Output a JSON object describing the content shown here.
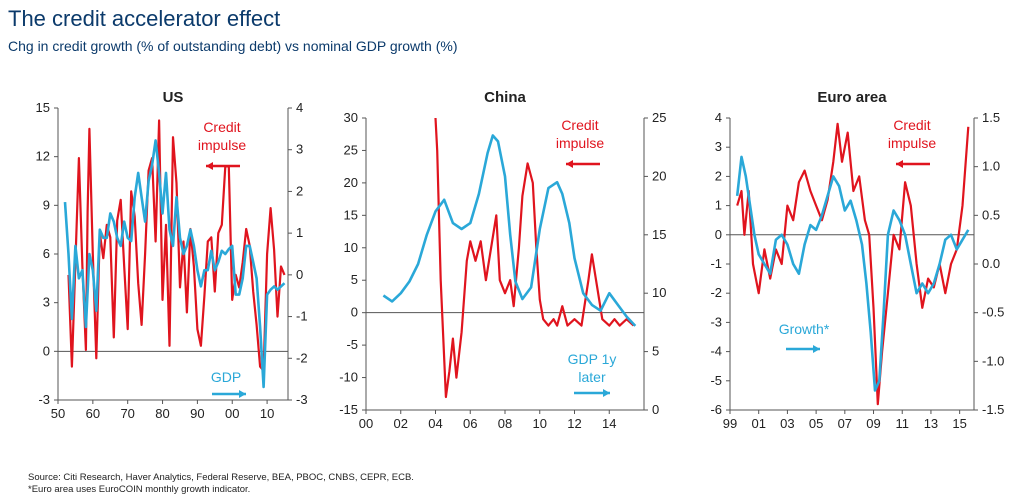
{
  "title": "The credit accelerator effect",
  "subtitle": "Chg in credit growth (% of outstanding debt) vs nominal GDP growth (%)",
  "source": "Source: Citi Research, Haver Analytics, Federal Reserve, BEA, PBOC, CNBS, CEPR, ECB.",
  "footnote": "*Euro area uses EuroCOIN monthly growth indicator.",
  "colors": {
    "credit": "#e0141e",
    "gdp": "#2aa8d8",
    "axis": "#555555",
    "text": "#222222"
  },
  "chart_data": [
    {
      "type": "line",
      "title": "US",
      "x_ticks": [
        "50",
        "60",
        "70",
        "80",
        "90",
        "00",
        "10"
      ],
      "x_tick_values": [
        1950,
        1960,
        1970,
        1980,
        1990,
        2000,
        2010
      ],
      "xlim": [
        1950,
        2016
      ],
      "left_axis": {
        "ticks": [
          -3,
          0,
          3,
          6,
          9,
          12,
          15
        ],
        "ylim": [
          -3,
          15
        ]
      },
      "right_axis": {
        "ticks": [
          -3,
          -2,
          -1,
          0,
          1,
          2,
          3,
          4
        ],
        "ylim": [
          -3,
          4
        ]
      },
      "series": [
        {
          "name": "Credit impulse",
          "axis": "right",
          "color": "#e0141e",
          "x": [
            1953,
            1954,
            1955,
            1956,
            1957,
            1958,
            1958.5,
            1959,
            1960,
            1961,
            1962,
            1963,
            1964,
            1965,
            1966,
            1967,
            1968,
            1969,
            1970,
            1971,
            1972,
            1973,
            1974,
            1975,
            1976,
            1977,
            1978,
            1979,
            1980,
            1981,
            1982,
            1983,
            1984,
            1985,
            1986,
            1987,
            1988,
            1989,
            1990,
            1991,
            1992,
            1993,
            1994,
            1995,
            1996,
            1997,
            1998,
            1999,
            2000,
            2001,
            2002,
            2003,
            2004,
            2005,
            2006,
            2007,
            2008,
            2009,
            2010,
            2011,
            2012,
            2013,
            2014,
            2015
          ],
          "y": [
            0,
            -2.2,
            0.3,
            2.8,
            0.2,
            -1.8,
            1.5,
            3.5,
            0.5,
            -2,
            1,
            0.4,
            1.2,
            0.9,
            -1.5,
            1.3,
            1.8,
            0.2,
            -1.3,
            2,
            1.4,
            -0.2,
            -1.2,
            0.5,
            2.5,
            2.8,
            0.8,
            3.7,
            -0.6,
            1.2,
            -1.7,
            3.3,
            2.2,
            -0.3,
            0.8,
            -0.9,
            1.1,
            0.2,
            -1.3,
            -1.7,
            -0.5,
            0.8,
            0.9,
            -0.4,
            1,
            1.2,
            2.6,
            2.6,
            -0.6,
            0,
            -0.3,
            0.3,
            1.1,
            0.7,
            -0.4,
            -1.2,
            -2.2,
            -2.3,
            0.5,
            1.6,
            0.6,
            -1,
            0.2,
            0
          ]
        },
        {
          "name": "GDP",
          "axis": "left",
          "color": "#2aa8d8",
          "x": [
            1952,
            1953,
            1954,
            1955,
            1956,
            1957,
            1958,
            1959,
            1960,
            1961,
            1962,
            1963,
            1964,
            1965,
            1966,
            1967,
            1968,
            1969,
            1970,
            1971,
            1972,
            1973,
            1974,
            1975,
            1976,
            1977,
            1978,
            1979,
            1980,
            1981,
            1982,
            1983,
            1984,
            1985,
            1986,
            1987,
            1988,
            1989,
            1990,
            1991,
            1992,
            1993,
            1994,
            1995,
            1996,
            1997,
            1998,
            1999,
            2000,
            2001,
            2002,
            2003,
            2004,
            2005,
            2006,
            2007,
            2008,
            2009,
            2010,
            2011,
            2012,
            2013,
            2014,
            2015
          ],
          "y": [
            9.2,
            6,
            2,
            6.5,
            4.5,
            5,
            1.5,
            6,
            5,
            2.5,
            7.5,
            7,
            7,
            8.5,
            8,
            7,
            6.5,
            8,
            7,
            6.8,
            9.5,
            11,
            9.5,
            8,
            10.5,
            11.5,
            13,
            11,
            8.5,
            11,
            7.5,
            6.5,
            9.5,
            7,
            6,
            6.5,
            7.5,
            6.5,
            5,
            4,
            5,
            5,
            6.2,
            5,
            5.5,
            6.2,
            6,
            6.3,
            6.5,
            3.5,
            3.5,
            4.5,
            6.5,
            6.5,
            5.5,
            4.5,
            1.5,
            -2.2,
            3.5,
            3.8,
            4,
            3.8,
            4,
            4.2
          ]
        }
      ],
      "annotations": {
        "credit_label": [
          "Credit",
          "impulse"
        ],
        "gdp_label": "GDP"
      }
    },
    {
      "type": "line",
      "title": "China",
      "x_ticks": [
        "00",
        "02",
        "04",
        "06",
        "08",
        "10",
        "12",
        "14"
      ],
      "x_tick_values": [
        2000,
        2002,
        2004,
        2006,
        2008,
        2010,
        2012,
        2014
      ],
      "xlim": [
        2000,
        2016
      ],
      "left_axis": {
        "ticks": [
          -15,
          -10,
          -5,
          0,
          5,
          10,
          15,
          20,
          25,
          30
        ],
        "ylim": [
          -15,
          30
        ]
      },
      "right_axis": {
        "ticks": [
          0,
          5,
          10,
          15,
          20,
          25
        ],
        "ylim": [
          0,
          25
        ]
      },
      "series": [
        {
          "name": "Credit impulse",
          "axis": "left",
          "color": "#e0141e",
          "x": [
            2004,
            2004.1,
            2004.3,
            2004.6,
            2004.8,
            2005,
            2005.2,
            2005.5,
            2005.8,
            2006,
            2006.3,
            2006.6,
            2006.9,
            2007.2,
            2007.5,
            2007.7,
            2008,
            2008.3,
            2008.5,
            2008.8,
            2009,
            2009.3,
            2009.6,
            2009.8,
            2010,
            2010.2,
            2010.5,
            2010.8,
            2011,
            2011.3,
            2011.6,
            2012,
            2012.4,
            2012.8,
            2013,
            2013.3,
            2013.6,
            2014,
            2014.3,
            2014.6,
            2015,
            2015.4
          ],
          "y": [
            30,
            25,
            5,
            -13,
            -9,
            -4,
            -10,
            -3,
            8,
            11,
            8,
            11,
            5,
            10,
            15,
            5,
            3,
            5,
            1,
            10,
            18,
            23,
            20,
            10,
            2,
            -1,
            -2,
            -1,
            -2,
            1,
            -2,
            -1,
            -2,
            5,
            9,
            4,
            -1,
            -2,
            -1,
            -2,
            -1,
            -2
          ]
        },
        {
          "name": "GDP 1y later",
          "axis": "right",
          "color": "#2aa8d8",
          "x": [
            2001,
            2001.5,
            2002,
            2002.5,
            2003,
            2003.5,
            2004,
            2004.5,
            2005,
            2005.5,
            2006,
            2006.5,
            2007,
            2007.3,
            2007.6,
            2008,
            2008.3,
            2008.6,
            2009,
            2009.5,
            2010,
            2010.5,
            2011,
            2011.3,
            2011.7,
            2012,
            2012.5,
            2013,
            2013.5,
            2014,
            2014.5,
            2015,
            2015.5
          ],
          "y": [
            9.8,
            9.3,
            10,
            11,
            12.5,
            15,
            17,
            18,
            16,
            15.5,
            16,
            18.5,
            22,
            23.5,
            23,
            20,
            15,
            11,
            9.5,
            10.5,
            15.5,
            19,
            19.5,
            18.5,
            16,
            13,
            10,
            9,
            8.5,
            10,
            9,
            8,
            7.2
          ]
        }
      ],
      "annotations": {
        "credit_label": [
          "Credit",
          "impulse"
        ],
        "gdp_label": [
          "GDP 1y",
          "later"
        ]
      }
    },
    {
      "type": "line",
      "title": "Euro area",
      "x_ticks": [
        "99",
        "01",
        "03",
        "05",
        "07",
        "09",
        "11",
        "13",
        "15"
      ],
      "x_tick_values": [
        1999,
        2001,
        2003,
        2005,
        2007,
        2009,
        2011,
        2013,
        2015
      ],
      "xlim": [
        1999,
        2016
      ],
      "left_axis": {
        "ticks": [
          -6,
          -5,
          -4,
          -3,
          -2,
          -1,
          0,
          1,
          2,
          3,
          4
        ],
        "ylim": [
          -6,
          4
        ]
      },
      "right_axis": {
        "ticks": [
          "-1.5",
          "-1.0",
          "-0.5",
          "0.0",
          "0.5",
          "1.0",
          "1.5"
        ],
        "ylim": [
          -1.5,
          1.5
        ]
      },
      "series": [
        {
          "name": "Credit impulse",
          "axis": "left",
          "color": "#e0141e",
          "x": [
            1999.5,
            1999.8,
            2000,
            2000.3,
            2000.6,
            2001,
            2001.4,
            2001.8,
            2002.2,
            2002.6,
            2003,
            2003.4,
            2003.8,
            2004.2,
            2004.6,
            2005,
            2005.4,
            2005.8,
            2006.2,
            2006.5,
            2006.8,
            2007.2,
            2007.6,
            2008,
            2008.4,
            2008.7,
            2009,
            2009.3,
            2009.6,
            2010,
            2010.4,
            2010.8,
            2011.2,
            2011.6,
            2012,
            2012.4,
            2012.8,
            2013.2,
            2013.6,
            2014,
            2014.4,
            2014.8,
            2015.2,
            2015.6
          ],
          "y": [
            1,
            1.5,
            0,
            1.5,
            -1,
            -2,
            -0.5,
            -1.5,
            -0.5,
            -1,
            1,
            0.5,
            1.8,
            2.2,
            1.5,
            1,
            0.5,
            1.2,
            2.5,
            3.8,
            2.5,
            3.5,
            1.5,
            2,
            0.5,
            0,
            -2.5,
            -5.8,
            -4,
            -2,
            0,
            -0.5,
            1.8,
            1,
            -1,
            -2.5,
            -1.5,
            -1.8,
            -1,
            -2,
            -1,
            -0.5,
            1,
            3.7
          ]
        },
        {
          "name": "Growth*",
          "axis": "right",
          "color": "#2aa8d8",
          "x": [
            1999.5,
            1999.8,
            2000.1,
            2000.4,
            2000.7,
            2001,
            2001.4,
            2001.8,
            2002.2,
            2002.6,
            2003,
            2003.4,
            2003.8,
            2004.2,
            2004.6,
            2005,
            2005.4,
            2005.8,
            2006.2,
            2006.6,
            2007,
            2007.4,
            2007.8,
            2008.2,
            2008.5,
            2008.8,
            2009.1,
            2009.4,
            2009.7,
            2010,
            2010.4,
            2010.8,
            2011.2,
            2011.6,
            2012,
            2012.4,
            2012.8,
            2013.2,
            2013.6,
            2014,
            2014.4,
            2014.8,
            2015.2,
            2015.6
          ],
          "y": [
            0.7,
            1.1,
            0.9,
            0.6,
            0.3,
            0.1,
            0,
            -0.1,
            0.25,
            0.3,
            0.2,
            0,
            -0.1,
            0.2,
            0.4,
            0.35,
            0.5,
            0.7,
            0.9,
            0.8,
            0.55,
            0.65,
            0.45,
            0.2,
            -0.2,
            -0.7,
            -1.3,
            -1.2,
            -0.5,
            0.3,
            0.55,
            0.45,
            0.3,
            0,
            -0.3,
            -0.2,
            -0.3,
            -0.2,
            0,
            0.25,
            0.3,
            0.15,
            0.25,
            0.35
          ]
        }
      ],
      "annotations": {
        "credit_label": [
          "Credit",
          "impulse"
        ],
        "gdp_label": "Growth*"
      }
    }
  ]
}
